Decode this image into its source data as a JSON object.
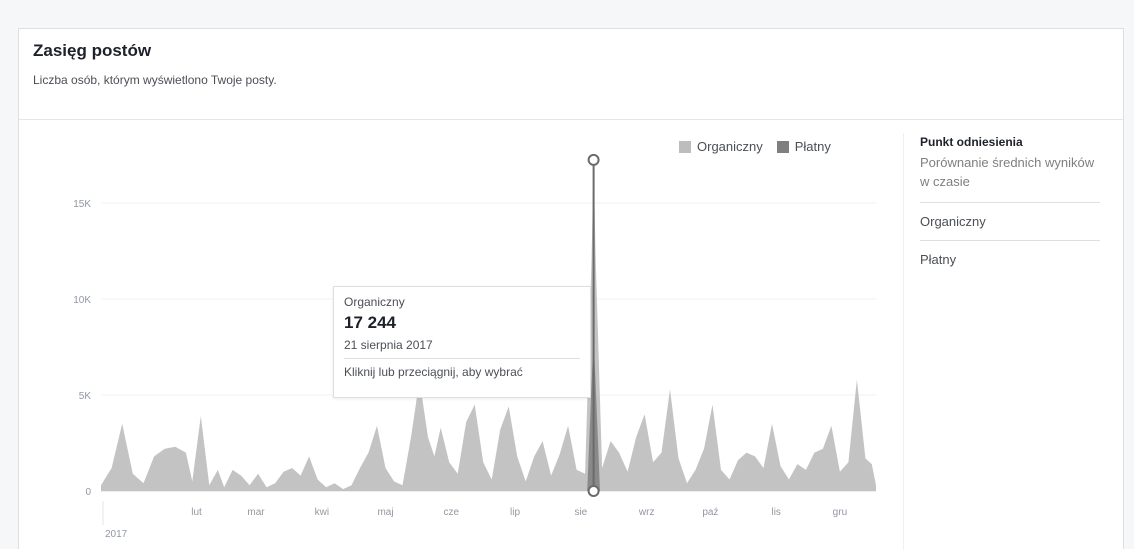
{
  "header": {
    "title": "Zasięg postów",
    "subtitle": "Liczba osób, którym wyświetlono Twoje posty."
  },
  "legend": {
    "items": [
      {
        "label": "Organiczny",
        "color": "#bdbdbd"
      },
      {
        "label": "Płatny",
        "color": "#7f7f7f"
      }
    ]
  },
  "benchmark": {
    "title": "Punkt odniesienia",
    "description": "Porównanie średnich wyników w czasie",
    "options": [
      "Organiczny",
      "Płatny"
    ]
  },
  "tooltip": {
    "series": "Organiczny",
    "value": "17 244",
    "date": "21 sierpnia 2017",
    "hint": "Kliknij lub przeciągnij, aby wybrać"
  },
  "chart_data": {
    "type": "area",
    "xlim": [
      0,
      365
    ],
    "ylim": [
      0,
      17500
    ],
    "y_ticks": [
      {
        "value": 0,
        "label": "0"
      },
      {
        "value": 5000,
        "label": "5K"
      },
      {
        "value": 10000,
        "label": "10K"
      },
      {
        "value": 15000,
        "label": "15K"
      }
    ],
    "x_ticks": [
      {
        "day": 31,
        "label": "lut"
      },
      {
        "day": 59,
        "label": "mar"
      },
      {
        "day": 90,
        "label": "kwi"
      },
      {
        "day": 120,
        "label": "maj"
      },
      {
        "day": 151,
        "label": "cze"
      },
      {
        "day": 181,
        "label": "lip"
      },
      {
        "day": 212,
        "label": "sie"
      },
      {
        "day": 243,
        "label": "wrz"
      },
      {
        "day": 273,
        "label": "paź"
      },
      {
        "day": 304,
        "label": "lis"
      },
      {
        "day": 334,
        "label": "gru"
      }
    ],
    "year_label": "2017",
    "highlight": {
      "day": 232,
      "value": 17244
    },
    "series": [
      {
        "name": "Organiczny",
        "color": "#bdbdbd",
        "points": [
          [
            0,
            300
          ],
          [
            5,
            1200
          ],
          [
            10,
            3500
          ],
          [
            15,
            900
          ],
          [
            20,
            400
          ],
          [
            25,
            1800
          ],
          [
            30,
            2200
          ],
          [
            35,
            2300
          ],
          [
            40,
            2000
          ],
          [
            43,
            500
          ],
          [
            47,
            3900
          ],
          [
            51,
            300
          ],
          [
            55,
            1100
          ],
          [
            58,
            200
          ],
          [
            62,
            1100
          ],
          [
            66,
            800
          ],
          [
            70,
            300
          ],
          [
            74,
            900
          ],
          [
            78,
            200
          ],
          [
            82,
            400
          ],
          [
            86,
            1000
          ],
          [
            90,
            1200
          ],
          [
            94,
            800
          ],
          [
            98,
            1800
          ],
          [
            102,
            600
          ],
          [
            106,
            200
          ],
          [
            110,
            400
          ],
          [
            114,
            100
          ],
          [
            118,
            300
          ],
          [
            122,
            1200
          ],
          [
            126,
            2000
          ],
          [
            130,
            3400
          ],
          [
            134,
            1200
          ],
          [
            138,
            500
          ],
          [
            142,
            300
          ],
          [
            146,
            2800
          ],
          [
            150,
            5800
          ],
          [
            154,
            2800
          ],
          [
            157,
            1800
          ],
          [
            160,
            3300
          ],
          [
            164,
            1500
          ],
          [
            168,
            900
          ],
          [
            172,
            3600
          ],
          [
            176,
            4500
          ],
          [
            180,
            1500
          ],
          [
            184,
            600
          ],
          [
            188,
            3200
          ],
          [
            192,
            4400
          ],
          [
            196,
            1800
          ],
          [
            200,
            500
          ],
          [
            204,
            1800
          ],
          [
            208,
            2600
          ],
          [
            212,
            800
          ],
          [
            216,
            1900
          ],
          [
            220,
            3400
          ],
          [
            224,
            1100
          ],
          [
            228,
            900
          ],
          [
            231,
            12000
          ],
          [
            232,
            17244
          ],
          [
            233,
            12000
          ],
          [
            236,
            1200
          ],
          [
            240,
            2600
          ],
          [
            244,
            2000
          ],
          [
            248,
            1000
          ],
          [
            252,
            2800
          ],
          [
            256,
            4000
          ],
          [
            260,
            1500
          ],
          [
            264,
            2000
          ],
          [
            268,
            5300
          ],
          [
            272,
            1700
          ],
          [
            276,
            400
          ],
          [
            280,
            1100
          ],
          [
            284,
            2200
          ],
          [
            288,
            4500
          ],
          [
            292,
            1100
          ],
          [
            296,
            600
          ],
          [
            300,
            1600
          ],
          [
            304,
            2000
          ],
          [
            308,
            1800
          ],
          [
            312,
            1200
          ],
          [
            316,
            3500
          ],
          [
            320,
            1300
          ],
          [
            324,
            600
          ],
          [
            328,
            1400
          ],
          [
            332,
            1100
          ],
          [
            336,
            2000
          ],
          [
            340,
            2200
          ],
          [
            344,
            3400
          ],
          [
            348,
            1000
          ],
          [
            352,
            1500
          ],
          [
            356,
            5800
          ],
          [
            360,
            1700
          ],
          [
            363,
            1400
          ],
          [
            365,
            300
          ]
        ]
      },
      {
        "name": "Płatny",
        "color": "#7f7f7f",
        "points": [
          [
            0,
            0
          ],
          [
            229,
            0
          ],
          [
            231,
            5500
          ],
          [
            232,
            8000
          ],
          [
            233,
            5500
          ],
          [
            235,
            0
          ],
          [
            365,
            0
          ]
        ]
      }
    ]
  }
}
